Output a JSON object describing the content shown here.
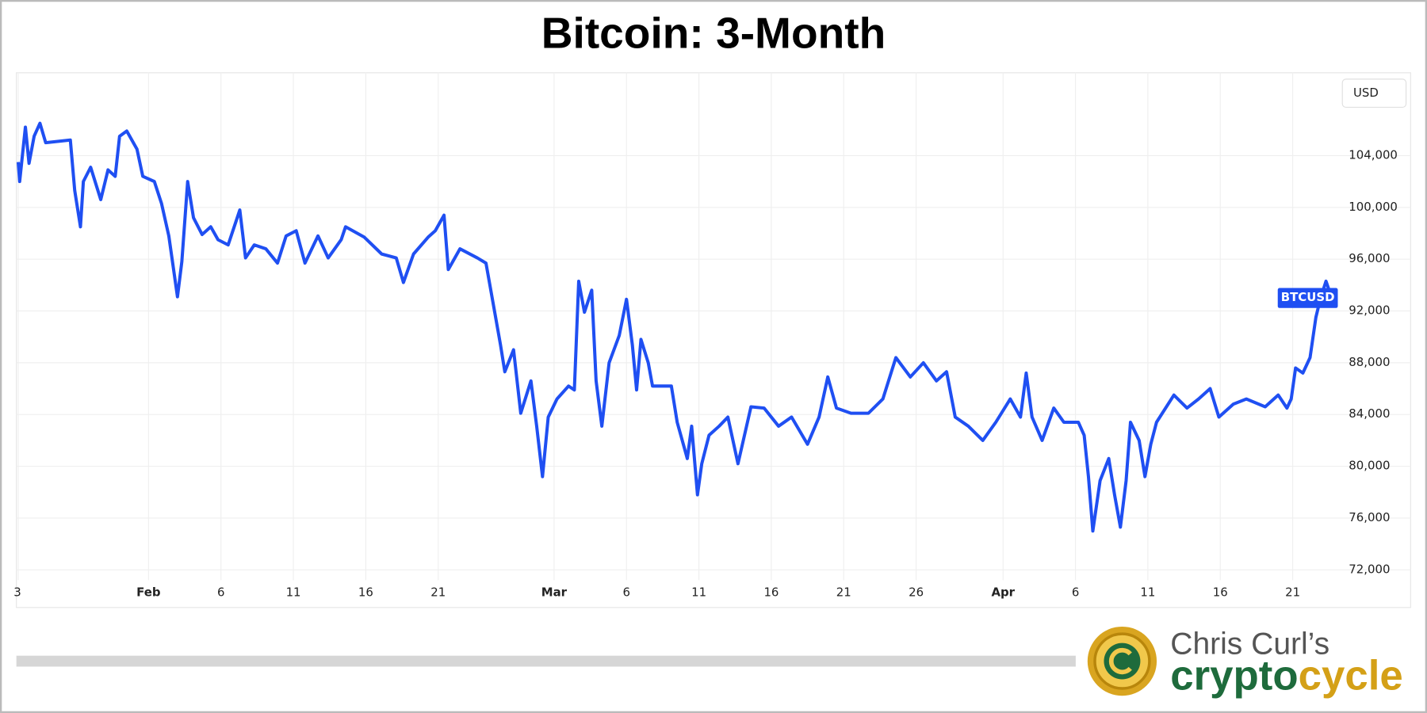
{
  "chart_data": {
    "type": "line",
    "title": "Bitcoin: 3-Month",
    "y_unit_label": "USD",
    "x": [
      0,
      0.1,
      0.5,
      0.75,
      1.1,
      1.5,
      1.9,
      3.6,
      3.9,
      4.3,
      4.5,
      5.0,
      5.7,
      6.2,
      6.7,
      7.0,
      7.5,
      8.2,
      8.6,
      9.4,
      9.9,
      10.4,
      11.0,
      11.3,
      11.7,
      12.1,
      12.7,
      13.3,
      13.8,
      14.5,
      15.3,
      15.7,
      16.3,
      17.1,
      17.9,
      18.5,
      19.2,
      19.8,
      20.7,
      21.4,
      22.3,
      22.6,
      23.9,
      25.1,
      26.1,
      26.6,
      27.3,
      28.3,
      28.8,
      29.4,
      29.7,
      30.5,
      31.7,
      32.3,
      32.9,
      33.3,
      33.6,
      34.2,
      34.7,
      35.4,
      35.8,
      36.2,
      36.6,
      37.2,
      38.0,
      38.4,
      38.7,
      39.1,
      39.6,
      39.9,
      40.3,
      40.8,
      41.5,
      42.0,
      42.4,
      42.7,
      43.0,
      43.5,
      43.8,
      45.1,
      45.5,
      46.2,
      46.5,
      46.9,
      47.2,
      47.7,
      48.4,
      49.0,
      49.7,
      50.6,
      51.5,
      52.5,
      53.4,
      54.5,
      55.3,
      55.9,
      56.5,
      57.5,
      58.7,
      59.7,
      60.6,
      61.6,
      62.5,
      63.4,
      64.1,
      64.7,
      65.6,
      66.6,
      67.5,
      68.5,
      69.2,
      69.6,
      70.0,
      70.7,
      71.5,
      72.2,
      73.2,
      73.6,
      73.9,
      74.2,
      74.7,
      75.3,
      75.7,
      76.1,
      76.5,
      76.8,
      77.4,
      77.8,
      78.2,
      78.6,
      79.8,
      80.7,
      81.5,
      82.3,
      82.9,
      83.9,
      84.8,
      86.1,
      87.0,
      87.6,
      87.9,
      88.2,
      88.7,
      89.2,
      89.6,
      89.9,
      90.3,
      90.7
    ],
    "series": [
      {
        "name": "BTCUSD",
        "color": "#1f4ff2",
        "values": [
          103500,
          102000,
          106200,
          103400,
          105500,
          106500,
          105000,
          105200,
          101300,
          98500,
          102000,
          103100,
          100600,
          102900,
          102400,
          105500,
          105900,
          104500,
          102400,
          102000,
          100300,
          97800,
          93100,
          95800,
          102000,
          99200,
          97900,
          98500,
          97500,
          97100,
          99800,
          96100,
          97100,
          96800,
          95700,
          97800,
          98200,
          95700,
          97800,
          96100,
          97500,
          98500,
          97700,
          96400,
          96100,
          94200,
          96400,
          97700,
          98200,
          99400,
          95200,
          96800,
          96100,
          95700,
          91900,
          89400,
          87300,
          89000,
          84100,
          86600,
          83100,
          79200,
          83800,
          85200,
          86200,
          85900,
          94300,
          91900,
          93600,
          86600,
          83100,
          88000,
          90100,
          92900,
          89400,
          85900,
          89800,
          88000,
          86200,
          86200,
          83400,
          80600,
          83100,
          77800,
          80200,
          82400,
          83100,
          83800,
          80200,
          84600,
          84500,
          83100,
          83800,
          81700,
          83800,
          86900,
          84500,
          84100,
          84100,
          85200,
          88400,
          86900,
          88000,
          86600,
          87300,
          83800,
          83100,
          82000,
          83400,
          85200,
          83800,
          87200,
          83800,
          82000,
          84500,
          83400,
          83400,
          82400,
          79200,
          75000,
          78900,
          80600,
          77800,
          75300,
          78900,
          83400,
          82000,
          79200,
          81700,
          83400,
          85500,
          84500,
          85200,
          86000,
          83800,
          84800,
          85200,
          84600,
          85500,
          84500,
          85200,
          87600,
          87200,
          88400,
          91500,
          92900,
          94300,
          93000
        ]
      }
    ],
    "xlim": [
      -0.125,
      90.8
    ],
    "xticks": [
      {
        "value": 0,
        "label": "3"
      },
      {
        "value": 9,
        "label": "Feb"
      },
      {
        "value": 14,
        "label": "6"
      },
      {
        "value": 19,
        "label": "11"
      },
      {
        "value": 24,
        "label": "16"
      },
      {
        "value": 29,
        "label": "21"
      },
      {
        "value": 37,
        "label": "Mar"
      },
      {
        "value": 42,
        "label": "6"
      },
      {
        "value": 47,
        "label": "11"
      },
      {
        "value": 52,
        "label": "16"
      },
      {
        "value": 57,
        "label": "21"
      },
      {
        "value": 62,
        "label": "26"
      },
      {
        "value": 68,
        "label": "Apr"
      },
      {
        "value": 73,
        "label": "6"
      },
      {
        "value": 78,
        "label": "11"
      },
      {
        "value": 83,
        "label": "16"
      },
      {
        "value": 88,
        "label": "21"
      }
    ],
    "ylim": [
      71200,
      110400
    ],
    "yticks": [
      {
        "value": 72000,
        "label": "72,000"
      },
      {
        "value": 76000,
        "label": "76,000"
      },
      {
        "value": 80000,
        "label": "80,000"
      },
      {
        "value": 84000,
        "label": "84,000"
      },
      {
        "value": 88000,
        "label": "88,000"
      },
      {
        "value": 92000,
        "label": "92,000"
      },
      {
        "value": 96000,
        "label": "96,000"
      },
      {
        "value": 100000,
        "label": "100,000"
      },
      {
        "value": 104000,
        "label": "104,000"
      }
    ],
    "grid": true
  },
  "logo": {
    "line1": "Chris Curl’s",
    "word_part1": "crypto",
    "word_part2": "cycle"
  }
}
